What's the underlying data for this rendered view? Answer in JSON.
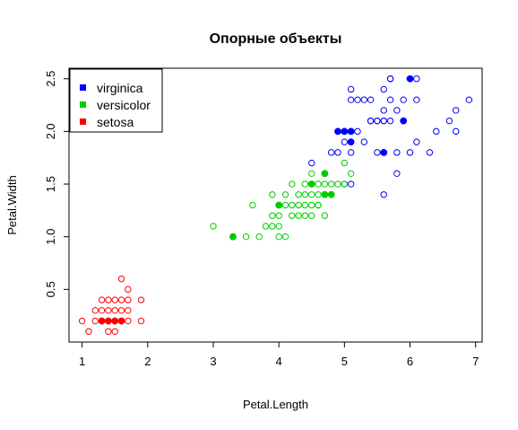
{
  "chart_data": {
    "type": "scatter",
    "title": "Опорные объекты",
    "xlabel": "Petal.Length",
    "ylabel": "Petal.Width",
    "xlim": [
      0.8,
      7.1
    ],
    "ylim": [
      0.0,
      2.6
    ],
    "xticks": [
      "1",
      "2",
      "3",
      "4",
      "5",
      "6",
      "7"
    ],
    "yticks": [
      "0.5",
      "1.0",
      "1.5",
      "2.0",
      "2.5"
    ],
    "grid": false,
    "legend_position": "top-left",
    "series": [
      {
        "name": "virginica",
        "color": "#0000ff",
        "points": [
          [
            4.8,
            1.8
          ],
          [
            4.9,
            1.8
          ],
          [
            5.0,
            1.9
          ],
          [
            5.0,
            1.5
          ],
          [
            5.0,
            2.0
          ],
          [
            5.1,
            2.3
          ],
          [
            5.1,
            2.0
          ],
          [
            5.1,
            1.5
          ],
          [
            5.1,
            2.4
          ],
          [
            5.2,
            2.3
          ],
          [
            5.3,
            2.3
          ],
          [
            5.3,
            1.9
          ],
          [
            5.4,
            2.1
          ],
          [
            5.4,
            2.3
          ],
          [
            5.5,
            2.1
          ],
          [
            5.5,
            1.8
          ],
          [
            5.5,
            2.1
          ],
          [
            5.6,
            2.4
          ],
          [
            5.6,
            2.2
          ],
          [
            5.6,
            1.4
          ],
          [
            5.6,
            2.1
          ],
          [
            5.7,
            2.3
          ],
          [
            5.7,
            2.1
          ],
          [
            5.7,
            2.5
          ],
          [
            5.8,
            2.2
          ],
          [
            5.8,
            1.8
          ],
          [
            5.8,
            1.6
          ],
          [
            5.9,
            2.3
          ],
          [
            6.0,
            1.8
          ],
          [
            6.0,
            2.5
          ],
          [
            6.1,
            2.3
          ],
          [
            6.1,
            1.9
          ],
          [
            6.1,
            2.5
          ],
          [
            6.3,
            1.8
          ],
          [
            6.4,
            2.0
          ],
          [
            6.6,
            2.1
          ],
          [
            6.7,
            2.0
          ],
          [
            6.7,
            2.2
          ],
          [
            6.9,
            2.3
          ],
          [
            5.6,
            2.1
          ],
          [
            5.2,
            2.0
          ],
          [
            4.5,
            1.7
          ],
          [
            4.9,
            2.0
          ],
          [
            5.1,
            1.8
          ],
          [
            5.7,
            2.5
          ],
          [
            5.4,
            2.1
          ]
        ],
        "support_points": [
          [
            4.9,
            2.0
          ],
          [
            5.0,
            2.0
          ],
          [
            5.1,
            2.0
          ],
          [
            5.1,
            1.9
          ],
          [
            5.6,
            1.8
          ],
          [
            5.9,
            2.1
          ],
          [
            6.0,
            2.5
          ]
        ]
      },
      {
        "name": "versicolor",
        "color": "#00cd00",
        "points": [
          [
            3.0,
            1.1
          ],
          [
            3.5,
            1.0
          ],
          [
            3.6,
            1.3
          ],
          [
            3.7,
            1.0
          ],
          [
            3.8,
            1.1
          ],
          [
            3.9,
            1.1
          ],
          [
            3.9,
            1.2
          ],
          [
            3.9,
            1.4
          ],
          [
            4.0,
            1.0
          ],
          [
            4.0,
            1.2
          ],
          [
            4.1,
            1.0
          ],
          [
            4.1,
            1.3
          ],
          [
            4.2,
            1.3
          ],
          [
            4.2,
            1.5
          ],
          [
            4.3,
            1.3
          ],
          [
            4.3,
            1.4
          ],
          [
            4.4,
            1.3
          ],
          [
            4.4,
            1.2
          ],
          [
            4.4,
            1.4
          ],
          [
            4.5,
            1.3
          ],
          [
            4.5,
            1.2
          ],
          [
            4.6,
            1.3
          ],
          [
            4.6,
            1.4
          ],
          [
            4.6,
            1.5
          ],
          [
            4.7,
            1.4
          ],
          [
            4.7,
            1.2
          ],
          [
            4.7,
            1.5
          ],
          [
            4.8,
            1.5
          ],
          [
            4.8,
            1.4
          ],
          [
            4.9,
            1.5
          ],
          [
            4.5,
            1.6
          ],
          [
            4.2,
            1.2
          ],
          [
            4.5,
            1.4
          ],
          [
            4.6,
            1.3
          ],
          [
            4.0,
            1.1
          ],
          [
            4.3,
            1.2
          ],
          [
            4.1,
            1.4
          ],
          [
            5.0,
            1.7
          ],
          [
            5.1,
            1.6
          ],
          [
            4.7,
            1.6
          ],
          [
            4.4,
            1.5
          ],
          [
            5.0,
            1.5
          ]
        ],
        "support_points": [
          [
            3.3,
            1.0
          ],
          [
            4.0,
            1.3
          ],
          [
            4.5,
            1.5
          ],
          [
            4.7,
            1.4
          ],
          [
            4.7,
            1.6
          ],
          [
            4.8,
            1.4
          ]
        ]
      },
      {
        "name": "setosa",
        "color": "#ff0000",
        "points": [
          [
            1.0,
            0.2
          ],
          [
            1.1,
            0.1
          ],
          [
            1.2,
            0.2
          ],
          [
            1.3,
            0.2
          ],
          [
            1.3,
            0.3
          ],
          [
            1.3,
            0.4
          ],
          [
            1.4,
            0.2
          ],
          [
            1.4,
            0.1
          ],
          [
            1.4,
            0.3
          ],
          [
            1.5,
            0.2
          ],
          [
            1.5,
            0.4
          ],
          [
            1.5,
            0.1
          ],
          [
            1.5,
            0.3
          ],
          [
            1.6,
            0.2
          ],
          [
            1.6,
            0.4
          ],
          [
            1.6,
            0.6
          ],
          [
            1.7,
            0.2
          ],
          [
            1.7,
            0.3
          ],
          [
            1.7,
            0.4
          ],
          [
            1.7,
            0.5
          ],
          [
            1.9,
            0.2
          ],
          [
            1.9,
            0.4
          ],
          [
            1.6,
            0.3
          ],
          [
            1.4,
            0.4
          ],
          [
            1.2,
            0.3
          ]
        ],
        "support_points": [
          [
            1.3,
            0.2
          ],
          [
            1.4,
            0.2
          ],
          [
            1.5,
            0.2
          ],
          [
            1.6,
            0.2
          ]
        ]
      }
    ]
  }
}
